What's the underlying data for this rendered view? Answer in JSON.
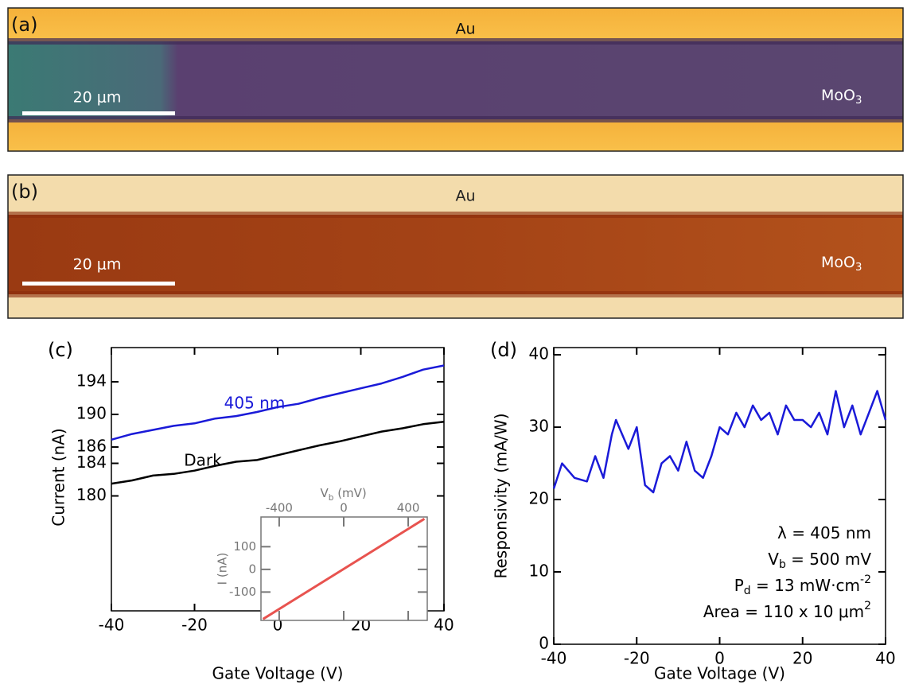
{
  "panels": [
    {
      "label": "(a)",
      "material_top": "Au",
      "material_side": [
        {
          "text": "MoO"
        },
        {
          "sub": "3"
        }
      ],
      "scale_bar": "20 μm"
    },
    {
      "label": "(b)",
      "material_top": "Au",
      "material_side": [
        {
          "text": "MoO"
        },
        {
          "sub": "3"
        }
      ],
      "scale_bar": "20 μm"
    }
  ],
  "chart_data": [
    {
      "type": "line",
      "panel_label": "(c)",
      "x_label": "Gate Voltage (V)",
      "y_label": "Current (nA)",
      "x": [
        -40,
        -35,
        -30,
        -25,
        -20,
        -15,
        -10,
        -5,
        0,
        5,
        10,
        15,
        20,
        25,
        30,
        35,
        40
      ],
      "series": [
        {
          "name": "405 nm",
          "color": "#1a1ad8",
          "values": [
            186.9,
            187.6,
            188.1,
            188.6,
            188.9,
            189.5,
            189.8,
            190.3,
            190.9,
            191.3,
            192.0,
            192.6,
            193.2,
            193.8,
            194.6,
            195.5,
            196.0
          ]
        },
        {
          "name": "Dark",
          "color": "#000000",
          "values": [
            181.5,
            181.9,
            182.5,
            182.7,
            183.1,
            183.7,
            184.2,
            184.4,
            185.0,
            185.6,
            186.2,
            186.7,
            187.3,
            187.9,
            188.3,
            188.8,
            189.1
          ]
        }
      ],
      "xlim": [
        -40,
        40
      ],
      "ylim": [
        165.9,
        198.2
      ],
      "xticks": [
        -40,
        -20,
        0,
        20,
        40
      ],
      "yticks": [
        180,
        184,
        186,
        190,
        194
      ]
    },
    {
      "type": "line",
      "x_label": [
        {
          "text": "V"
        },
        {
          "sub": "b"
        },
        {
          "text": " (mV)"
        }
      ],
      "y_label": "I (nA)",
      "x": [
        -500,
        500
      ],
      "series": [
        {
          "color": "#e8534f",
          "values": [
            -219,
            223
          ]
        }
      ],
      "xlim": [
        -513,
        518
      ],
      "ylim": [
        -225,
        231
      ],
      "xticks": [
        -400,
        0,
        400
      ],
      "yticks": [
        -100,
        0,
        100
      ]
    },
    {
      "type": "line",
      "panel_label": "(d)",
      "x_label": "Gate Voltage (V)",
      "y_label": "Responsivity (mA/W)",
      "x": [
        -40,
        -38,
        -35,
        -32,
        -30,
        -28,
        -26,
        -25,
        -22,
        -20,
        -18,
        -16,
        -14,
        -12,
        -10,
        -8,
        -6,
        -4,
        -2,
        0,
        2,
        4,
        6,
        8,
        10,
        12,
        14,
        16,
        18,
        20,
        22,
        24,
        26,
        28,
        30,
        32,
        34,
        36,
        38,
        40
      ],
      "series": [
        {
          "color": "#1a1ad8",
          "values": [
            21.5,
            25,
            23,
            22.5,
            26,
            23,
            29,
            31,
            27,
            30,
            22,
            21,
            25,
            26,
            24,
            28,
            24,
            23,
            26,
            30,
            29,
            32,
            30,
            33,
            31,
            32,
            29,
            33,
            31,
            31,
            30,
            32,
            29,
            35,
            30,
            33,
            29,
            32,
            35,
            31
          ]
        }
      ],
      "xlim": [
        -40,
        40
      ],
      "ylim": [
        0,
        41
      ],
      "xticks": [
        -40,
        -20,
        0,
        20,
        40
      ],
      "yticks": [
        0,
        10,
        20,
        30,
        40
      ],
      "annotations": [
        [
          {
            "text": "λ = 405 nm"
          }
        ],
        [
          {
            "text": "V"
          },
          {
            "sub": "b"
          },
          {
            "text": " = 500 mV"
          }
        ],
        [
          {
            "text": "P"
          },
          {
            "sub": "d"
          },
          {
            "text": " = 13 mW·cm"
          },
          {
            "sup": "-2"
          }
        ],
        [
          {
            "text": "Area = 110 x 10 μm"
          },
          {
            "sup": "2"
          }
        ]
      ]
    }
  ]
}
